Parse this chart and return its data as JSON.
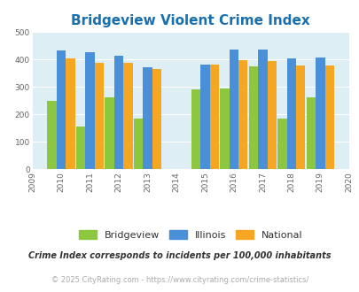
{
  "title": "Bridgeview Violent Crime Index",
  "all_years": [
    2009,
    2010,
    2011,
    2012,
    2013,
    2014,
    2015,
    2016,
    2017,
    2018,
    2019,
    2020
  ],
  "data_years": [
    2010,
    2011,
    2012,
    2013,
    2015,
    2016,
    2017,
    2018,
    2019
  ],
  "bridgeview": [
    248,
    155,
    262,
    184,
    293,
    295,
    375,
    185,
    262
  ],
  "illinois": [
    433,
    427,
    414,
    371,
    383,
    437,
    437,
    405,
    408
  ],
  "national": [
    405,
    387,
    387,
    365,
    383,
    397,
    394,
    380,
    379
  ],
  "bar_colors": {
    "bridgeview": "#8dc63f",
    "illinois": "#4a90d9",
    "national": "#f5a623"
  },
  "ylim": [
    0,
    500
  ],
  "yticks": [
    0,
    100,
    200,
    300,
    400,
    500
  ],
  "plot_bg": "#ddeef4",
  "title_color": "#1a6faf",
  "title_fontsize": 11,
  "footnote1": "Crime Index corresponds to incidents per 100,000 inhabitants",
  "footnote2": "© 2025 CityRating.com - https://www.cityrating.com/crime-statistics/",
  "footnote1_color": "#333333",
  "footnote2_color": "#aaaaaa",
  "legend_labels": [
    "Bridgeview",
    "Illinois",
    "National"
  ],
  "bar_width": 0.32
}
